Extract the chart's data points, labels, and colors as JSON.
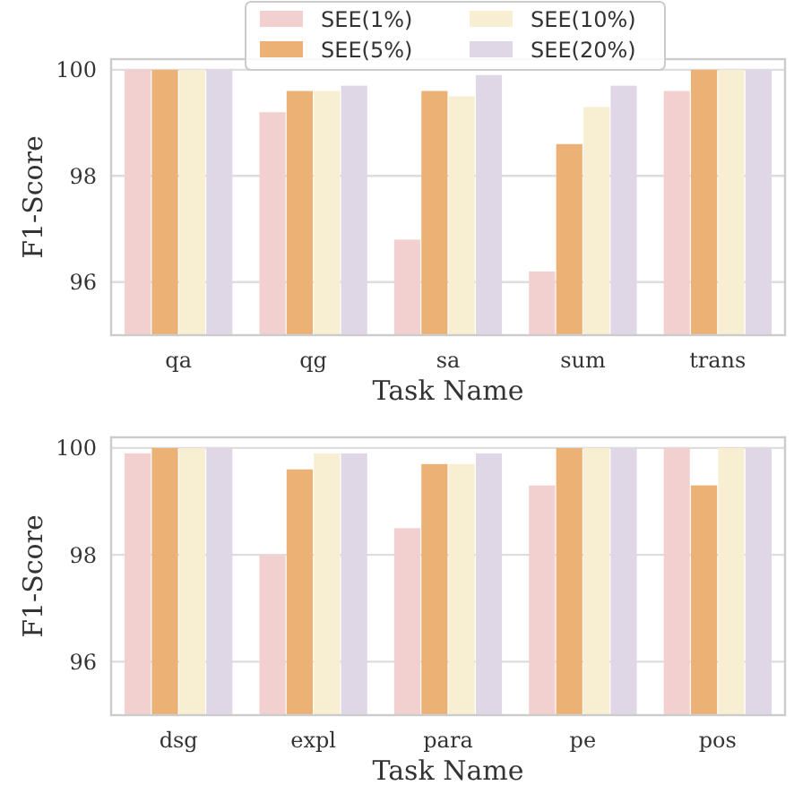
{
  "chart_data": [
    {
      "type": "bar",
      "xlabel": "Task Name",
      "ylabel": "F1-Score",
      "categories": [
        "qa",
        "qg",
        "sa",
        "sum",
        "trans"
      ],
      "series": [
        {
          "name": "SEE(1%)",
          "color": "#f2d0d0",
          "values": [
            100,
            99.2,
            96.8,
            96.2,
            99.6
          ]
        },
        {
          "name": "SEE(5%)",
          "color": "#ebb175",
          "values": [
            100,
            99.6,
            99.6,
            98.6,
            100
          ]
        },
        {
          "name": "SEE(10%)",
          "color": "#f8efd2",
          "values": [
            100,
            99.6,
            99.5,
            99.3,
            100
          ]
        },
        {
          "name": "SEE(20%)",
          "color": "#dfd7e5",
          "values": [
            100,
            99.7,
            99.9,
            99.7,
            100
          ]
        }
      ],
      "ylim": [
        95,
        100.2
      ],
      "yticks": [
        96,
        98,
        100
      ],
      "grid": "y",
      "legend": "top"
    },
    {
      "type": "bar",
      "xlabel": "Task Name",
      "ylabel": "F1-Score",
      "categories": [
        "dsg",
        "expl",
        "para",
        "pe",
        "pos"
      ],
      "series": [
        {
          "color": "#f2d0d0",
          "values": [
            99.9,
            98.0,
            98.5,
            99.3,
            100
          ]
        },
        {
          "color": "#ebb175",
          "values": [
            100,
            99.6,
            99.7,
            100,
            99.3
          ]
        },
        {
          "color": "#f8efd2",
          "values": [
            100,
            99.9,
            99.7,
            100,
            100
          ]
        },
        {
          "color": "#dfd7e5",
          "values": [
            100,
            99.9,
            99.9,
            100,
            100
          ]
        }
      ],
      "ylim": [
        95,
        100.2
      ],
      "yticks": [
        96,
        98,
        100
      ],
      "grid": "y"
    }
  ]
}
